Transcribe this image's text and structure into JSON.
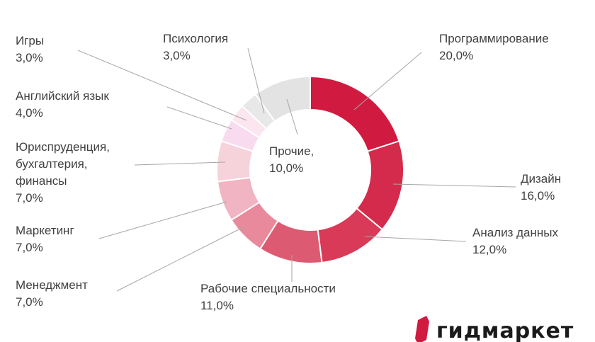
{
  "chart_data": {
    "type": "pie",
    "subtype": "donut",
    "title": "",
    "slices": [
      {
        "name": "Программирование",
        "value": 20.0,
        "label_value": "20,0%",
        "color": "#d11a3f"
      },
      {
        "name": "Дизайн",
        "value": 16.0,
        "label_value": "16,0%",
        "color": "#d42a4b"
      },
      {
        "name": "Анализ данных",
        "value": 12.0,
        "label_value": "12,0%",
        "color": "#d83a57"
      },
      {
        "name": "Рабочие специальности",
        "value": 11.0,
        "label_value": "11,0%",
        "color": "#dd5b72"
      },
      {
        "name": "Менеджмент",
        "value": 7.0,
        "label_value": "7,0%",
        "color": "#e88a9c"
      },
      {
        "name": "Маркетинг",
        "value": 7.0,
        "label_value": "7,0%",
        "color": "#f0b4c2"
      },
      {
        "name": "Юриспруденция,\nбухгалтерия,\nфинансы",
        "value": 7.0,
        "label_value": "7,0%",
        "color": "#f6d2db"
      },
      {
        "name": "Английский язык",
        "value": 4.0,
        "label_value": "4,0%",
        "color": "#f9dbf0"
      },
      {
        "name": "Игры",
        "value": 3.0,
        "label_value": "3,0%",
        "color": "#fbe5ee"
      },
      {
        "name": "Психология",
        "value": 3.0,
        "label_value": "3,0%",
        "color": "#e8e8e8"
      },
      {
        "name": "Прочие,",
        "value": 10.0,
        "label_value": "10,0%",
        "color": "#e3e3e3"
      }
    ]
  },
  "logo": {
    "text": "гидмаркет",
    "color": "#d11a3f"
  }
}
